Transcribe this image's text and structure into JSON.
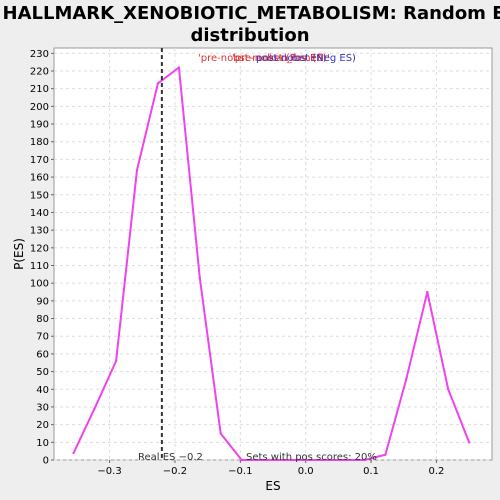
{
  "chart_data": {
    "type": "line",
    "title_line1": "HALLMARK_XENOBIOTIC_METABOLISM: Random ES",
    "title_line2": "distribution",
    "xlabel": "ES",
    "ylabel": "P(ES)",
    "xlim": [
      -0.385,
      0.285
    ],
    "ylim": [
      0,
      233
    ],
    "x_ticks": [
      -0.3,
      -0.2,
      -0.1,
      0.0,
      0.1,
      0.2
    ],
    "x_tick_labels": [
      "−0.3",
      "−0.2",
      "−0.1",
      "0.0",
      "0.1",
      "0.2"
    ],
    "y_ticks": [
      0,
      10,
      20,
      30,
      40,
      50,
      60,
      70,
      80,
      90,
      100,
      110,
      120,
      130,
      140,
      150,
      160,
      170,
      180,
      190,
      200,
      210,
      220,
      230
    ],
    "grid": true,
    "series": [
      {
        "color": "#ee44ee",
        "x": [
          -0.355,
          -0.323,
          -0.29,
          -0.258,
          -0.226,
          -0.194,
          -0.162,
          -0.13,
          -0.098,
          -0.066,
          -0.034,
          0.0,
          0.03,
          0.06,
          0.09,
          0.122,
          0.154,
          0.186,
          0.218,
          0.25
        ],
        "y": [
          4,
          29,
          56,
          164,
          213,
          222,
          103,
          15,
          0,
          0,
          0,
          0,
          0,
          0,
          0,
          3,
          46,
          95,
          40,
          10
        ]
      }
    ],
    "real_es": -0.22,
    "legend": {
      "placement": "top-center",
      "entries": [
        {
          "text": "'pre-nobst-ranked_benefit'",
          "color": "#dd3333"
        },
        {
          "text": "'pre-nobst (Pos ES)",
          "color": "#dd3333"
        },
        {
          "text": "post-nobst (Neg ES)",
          "color": "#3333cc"
        }
      ]
    },
    "annotations": {
      "real_es_label": "Real ES −0.2",
      "pos_scores_label": "Sets with pos scores: 20%"
    }
  }
}
